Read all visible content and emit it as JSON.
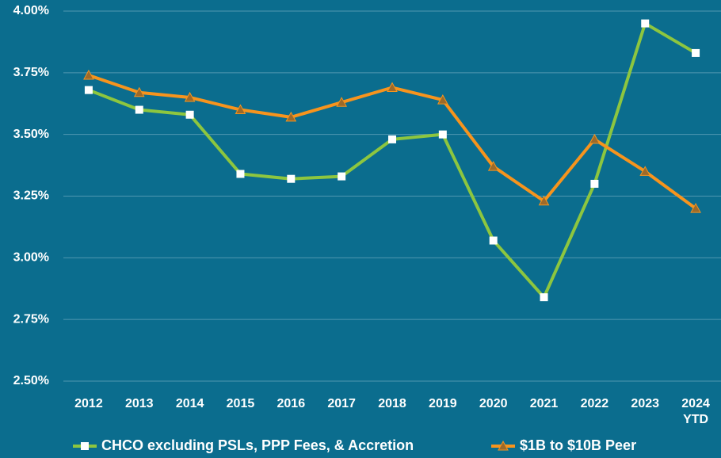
{
  "chart_data": {
    "type": "line",
    "categories": [
      "2012",
      "2013",
      "2014",
      "2015",
      "2016",
      "2017",
      "2018",
      "2019",
      "2020",
      "2021",
      "2022",
      "2023",
      "2024 YTD"
    ],
    "series": [
      {
        "name": "CHCO excluding PSLs, PPP Fees, & Accretion",
        "color": "#8dc63f",
        "marker": "square",
        "values": [
          3.68,
          3.6,
          3.58,
          3.34,
          3.32,
          3.33,
          3.48,
          3.5,
          3.07,
          2.84,
          3.3,
          3.95,
          3.83
        ]
      },
      {
        "name": "$1B to $10B Peer",
        "color": "#f7941d",
        "marker": "triangle",
        "values": [
          3.74,
          3.67,
          3.65,
          3.6,
          3.57,
          3.63,
          3.69,
          3.64,
          3.37,
          3.23,
          3.48,
          3.35,
          3.2
        ]
      }
    ],
    "ylim": [
      2.5,
      4.0
    ],
    "yticks": [
      {
        "value": 2.5,
        "label": "2.50%"
      },
      {
        "value": 2.75,
        "label": "2.75%"
      },
      {
        "value": 3.0,
        "label": "3.00%"
      },
      {
        "value": 3.25,
        "label": "3.25%"
      },
      {
        "value": 3.5,
        "label": "3.50%"
      },
      {
        "value": 3.75,
        "label": "3.75%"
      },
      {
        "value": 4.0,
        "label": "4.00%"
      }
    ],
    "grid": true,
    "legend": "bottom"
  }
}
